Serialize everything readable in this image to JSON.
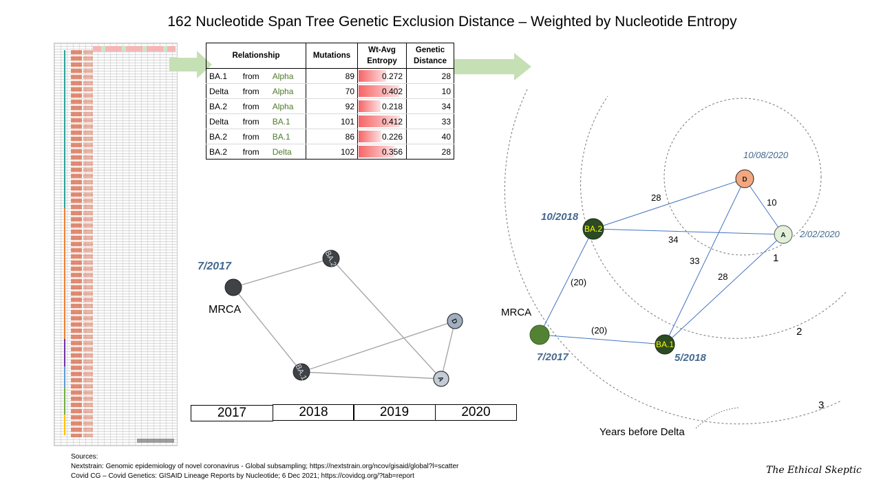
{
  "title": "162 Nucleotide Span Tree Genetic Exclusion Distance – Weighted by Nucleotide Entropy",
  "table": {
    "headers": {
      "relationship": "Relationship",
      "mutations": "Mutations",
      "entropy": "Wt-Avg Entropy",
      "distance": "Genetic Distance"
    },
    "rows": [
      {
        "to": "BA.1",
        "word": "from",
        "from": "Alpha",
        "mutations": "89",
        "entropy": "0.272",
        "entropy_value": 0.272,
        "distance": "28"
      },
      {
        "to": "Delta",
        "word": "from",
        "from": "Alpha",
        "mutations": "70",
        "entropy": "0.402",
        "entropy_value": 0.402,
        "distance": "10"
      },
      {
        "to": "BA.2",
        "word": "from",
        "from": "Alpha",
        "mutations": "92",
        "entropy": "0.218",
        "entropy_value": 0.218,
        "distance": "34"
      },
      {
        "to": "Delta",
        "word": "from",
        "from": "BA.1",
        "mutations": "101",
        "entropy": "0.412",
        "entropy_value": 0.412,
        "distance": "33"
      },
      {
        "to": "BA.2",
        "word": "from",
        "from": "BA.1",
        "mutations": "86",
        "entropy": "0.226",
        "entropy_value": 0.226,
        "distance": "40"
      },
      {
        "to": "BA.2",
        "word": "from",
        "from": "Delta",
        "mutations": "102",
        "entropy": "0.356",
        "entropy_value": 0.356,
        "distance": "28"
      }
    ]
  },
  "timeline": {
    "mrca_date": "7/2017",
    "mrca_label": "MRCA",
    "node_labels": {
      "ba2": "BA.2",
      "ba1": "BA.1",
      "d": "D",
      "a": "A"
    },
    "years": [
      "2017",
      "2018",
      "2019",
      "2020"
    ]
  },
  "radial": {
    "nodes": {
      "d": "D",
      "a": "A",
      "ba2": "BA.2",
      "ba1": "BA.1",
      "mrca": "MRCA"
    },
    "dates": {
      "d": "10/08/2020",
      "a": "2/02/2020",
      "ba2": "10/2018",
      "ba1": "5/2018",
      "mrca": "7/2017"
    },
    "edge_labels": {
      "ba2_d": "28",
      "d_a": "10",
      "ba2_a": "34",
      "ba1_d": "33",
      "ba1_a": "28",
      "mrca_ba2": "(20)",
      "mrca_ba1": "(20)"
    },
    "ring_labels": [
      "1",
      "2",
      "3"
    ],
    "ring_caption": "Years before Delta"
  },
  "sources": {
    "heading": "Sources:",
    "lines": [
      "Nextstrain: Genomic epidemiology of novel coronavirus - Global subsampling; https://nextstrain.org/ncov/gisaid/global?l=scatter",
      "Covid CG – Covid Genetics: GISAID Lineage Reports by Nucleotide; 6 Dec 2021; https://covidcg.org/?tab=report"
    ]
  },
  "brand": "The Ethical Skeptic",
  "colors": {
    "node_dark": "#3f4347",
    "node_green_dark": "#2c4a23",
    "node_green": "#548235",
    "node_delta": "#f4a77f",
    "node_alpha": "#e2f0d9",
    "label_yellow": "#ffff00",
    "date_blue": "#44698e",
    "arrow_green": "#c5e0b4"
  }
}
